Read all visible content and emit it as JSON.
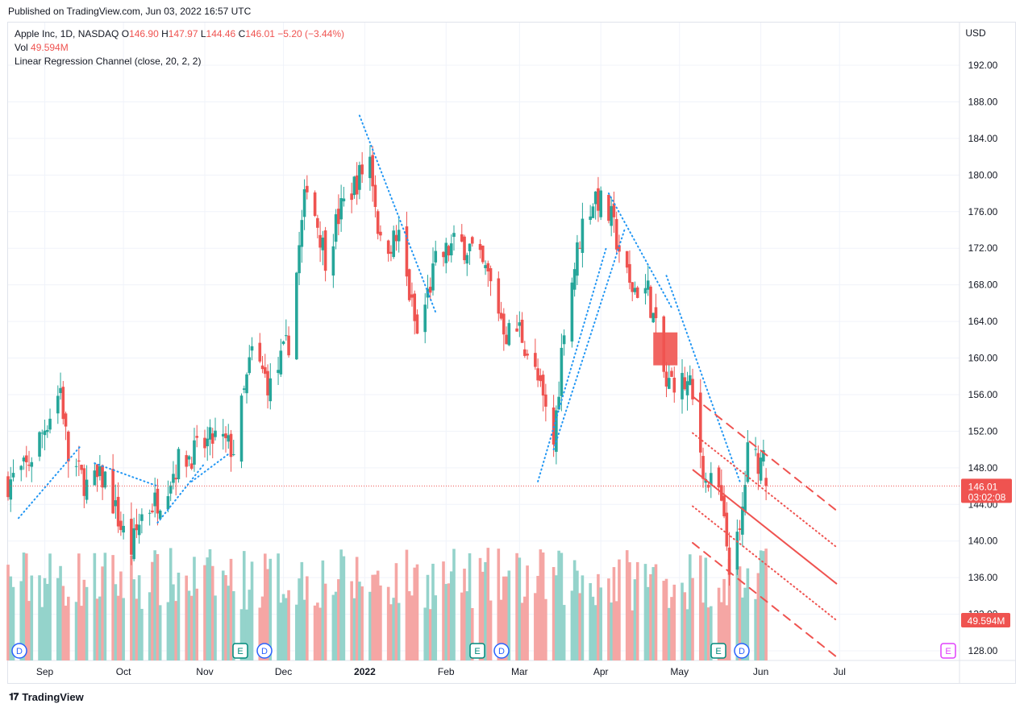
{
  "published": "Published on TradingView.com, Jun 03, 2022 16:57 UTC",
  "footer_brand": "TradingView",
  "legend": {
    "symbol": "Apple Inc, 1D, NASDAQ",
    "o_label": "O",
    "o_value": "146.90",
    "h_label": "H",
    "h_value": "147.97",
    "l_label": "L",
    "l_value": "144.46",
    "c_label": "C",
    "c_value": "146.01",
    "change": "−5.20 (−3.44%)",
    "vol_label": "Vol",
    "vol_value": "49.594M",
    "indicator": "Linear Regression Channel (close, 20, 2, 2)"
  },
  "price_axis": {
    "currency": "USD",
    "ticks": [
      "192.00",
      "188.00",
      "184.00",
      "180.00",
      "176.00",
      "172.00",
      "168.00",
      "164.00",
      "160.00",
      "156.00",
      "152.00",
      "148.00",
      "144.00",
      "140.00",
      "136.00",
      "132.00",
      "128.00"
    ],
    "last_price": "146.01",
    "countdown": "03:02:08",
    "last_volume": "49.594M"
  },
  "time_axis": {
    "ticks": [
      "Sep",
      "Oct",
      "Nov",
      "Dec",
      "2022",
      "Feb",
      "Mar",
      "Apr",
      "May",
      "Jun",
      "Jul"
    ]
  },
  "event_markers": [
    "D",
    "D",
    "E",
    "D",
    "E",
    "D",
    "E",
    "D",
    "E"
  ],
  "colors": {
    "up": "#26a69a",
    "down": "#ef5350",
    "up_volume": "#94d3cb",
    "down_volume": "#f5a6a4",
    "trendline": "#2196f3",
    "grid": "#f0f3fa",
    "earnings": "#00897b",
    "dividend": "#2962ff",
    "future_earnings": "#e040fb"
  },
  "chart_data": {
    "type": "candlestick",
    "symbol": "AAPL",
    "interval": "1D",
    "ylim": [
      126,
      196
    ],
    "close_path": [
      [
        "2021-08-18",
        146.4
      ],
      [
        "2021-08-25",
        148.0
      ],
      [
        "2021-08-31",
        151.8
      ],
      [
        "2021-09-07",
        156.7
      ],
      [
        "2021-09-10",
        149.0
      ],
      [
        "2021-09-17",
        146.1
      ],
      [
        "2021-09-24",
        146.9
      ],
      [
        "2021-09-30",
        141.5
      ],
      [
        "2021-10-04",
        139.1
      ],
      [
        "2021-10-08",
        142.9
      ],
      [
        "2021-10-15",
        144.8
      ],
      [
        "2021-10-22",
        148.7
      ],
      [
        "2021-10-29",
        149.8
      ],
      [
        "2021-11-05",
        151.3
      ],
      [
        "2021-11-12",
        150.0
      ],
      [
        "2021-11-19",
        160.6
      ],
      [
        "2021-11-26",
        156.8
      ],
      [
        "2021-12-03",
        161.8
      ],
      [
        "2021-12-10",
        179.5
      ],
      [
        "2021-12-17",
        171.1
      ],
      [
        "2021-12-23",
        176.3
      ],
      [
        "2021-12-29",
        179.4
      ],
      [
        "2022-01-03",
        182.0
      ],
      [
        "2022-01-07",
        172.2
      ],
      [
        "2022-01-14",
        173.1
      ],
      [
        "2022-01-21",
        162.4
      ],
      [
        "2022-01-28",
        170.3
      ],
      [
        "2022-02-04",
        172.4
      ],
      [
        "2022-02-10",
        172.1
      ],
      [
        "2022-02-17",
        168.9
      ],
      [
        "2022-02-24",
        162.7
      ],
      [
        "2022-03-01",
        163.2
      ],
      [
        "2022-03-08",
        157.4
      ],
      [
        "2022-03-14",
        150.6
      ],
      [
        "2022-03-18",
        163.9
      ],
      [
        "2022-03-25",
        174.7
      ],
      [
        "2022-03-30",
        177.8
      ],
      [
        "2022-04-05",
        175.1
      ],
      [
        "2022-04-12",
        167.7
      ],
      [
        "2022-04-19",
        167.4
      ],
      [
        "2022-04-26",
        156.8
      ],
      [
        "2022-04-29",
        157.7
      ],
      [
        "2022-05-05",
        156.8
      ],
      [
        "2022-05-11",
        146.5
      ],
      [
        "2022-05-16",
        145.5
      ],
      [
        "2022-05-20",
        137.6
      ],
      [
        "2022-05-24",
        140.4
      ],
      [
        "2022-05-27",
        149.6
      ],
      [
        "2022-06-01",
        148.7
      ],
      [
        "2022-06-02",
        151.2
      ],
      [
        "2022-06-03",
        146.0
      ]
    ],
    "last_bar": {
      "date": "2022-06-03",
      "open": 146.9,
      "high": 147.97,
      "low": 144.46,
      "close": 146.01,
      "volume": "49.594M"
    },
    "regression_channel": {
      "from": "2022-05-06",
      "to": "2022-06-30",
      "center_start": 147.8,
      "center_end": 135.3,
      "inner_offset": 4.0,
      "outer_offset": 8.0
    }
  }
}
